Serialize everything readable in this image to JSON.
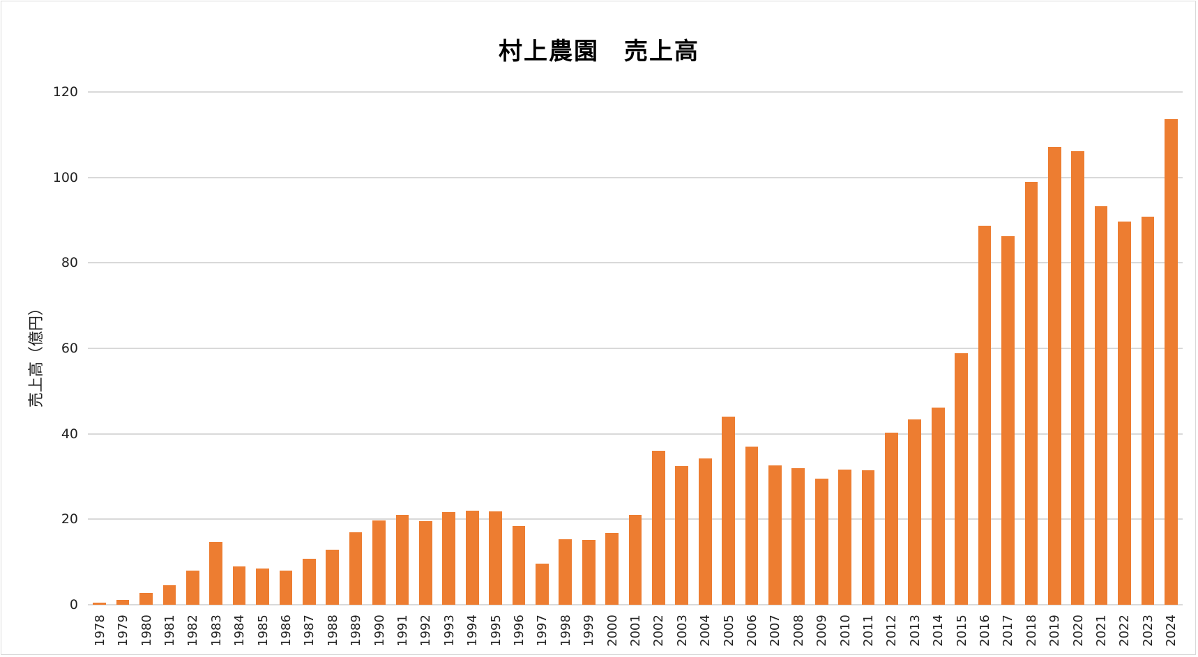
{
  "chart_data": {
    "type": "bar",
    "title": "村上農園　売上高",
    "xlabel": "",
    "ylabel": "売上高（億円）",
    "ylim": [
      0,
      120
    ],
    "yticks": [
      0,
      20,
      40,
      60,
      80,
      100,
      120
    ],
    "grid": true,
    "legend": null,
    "bar_color": "#ed7d31",
    "categories": [
      "1978",
      "1979",
      "1980",
      "1981",
      "1982",
      "1983",
      "1984",
      "1985",
      "1986",
      "1987",
      "1988",
      "1989",
      "1990",
      "1991",
      "1992",
      "1993",
      "1994",
      "1995",
      "1996",
      "1997",
      "1998",
      "1999",
      "2000",
      "2001",
      "2002",
      "2003",
      "2004",
      "2005",
      "2006",
      "2007",
      "2008",
      "2009",
      "2010",
      "2011",
      "2012",
      "2013",
      "2014",
      "2015",
      "2016",
      "2017",
      "2018",
      "2019",
      "2020",
      "2021",
      "2022",
      "2023",
      "2024"
    ],
    "values": [
      0.5,
      1.1,
      2.7,
      4.5,
      8.0,
      14.7,
      8.9,
      8.5,
      8.0,
      10.7,
      12.8,
      17.0,
      19.7,
      21.0,
      19.5,
      21.7,
      22.0,
      21.8,
      18.4,
      9.7,
      15.4,
      15.2,
      16.8,
      21.0,
      36.0,
      32.5,
      34.2,
      44.0,
      37.0,
      32.6,
      32.0,
      29.5,
      31.7,
      31.5,
      40.2,
      43.3,
      46.1,
      58.8,
      88.7,
      86.2,
      99.0,
      107.2,
      106.2,
      93.3,
      89.7,
      90.8,
      113.7
    ]
  }
}
